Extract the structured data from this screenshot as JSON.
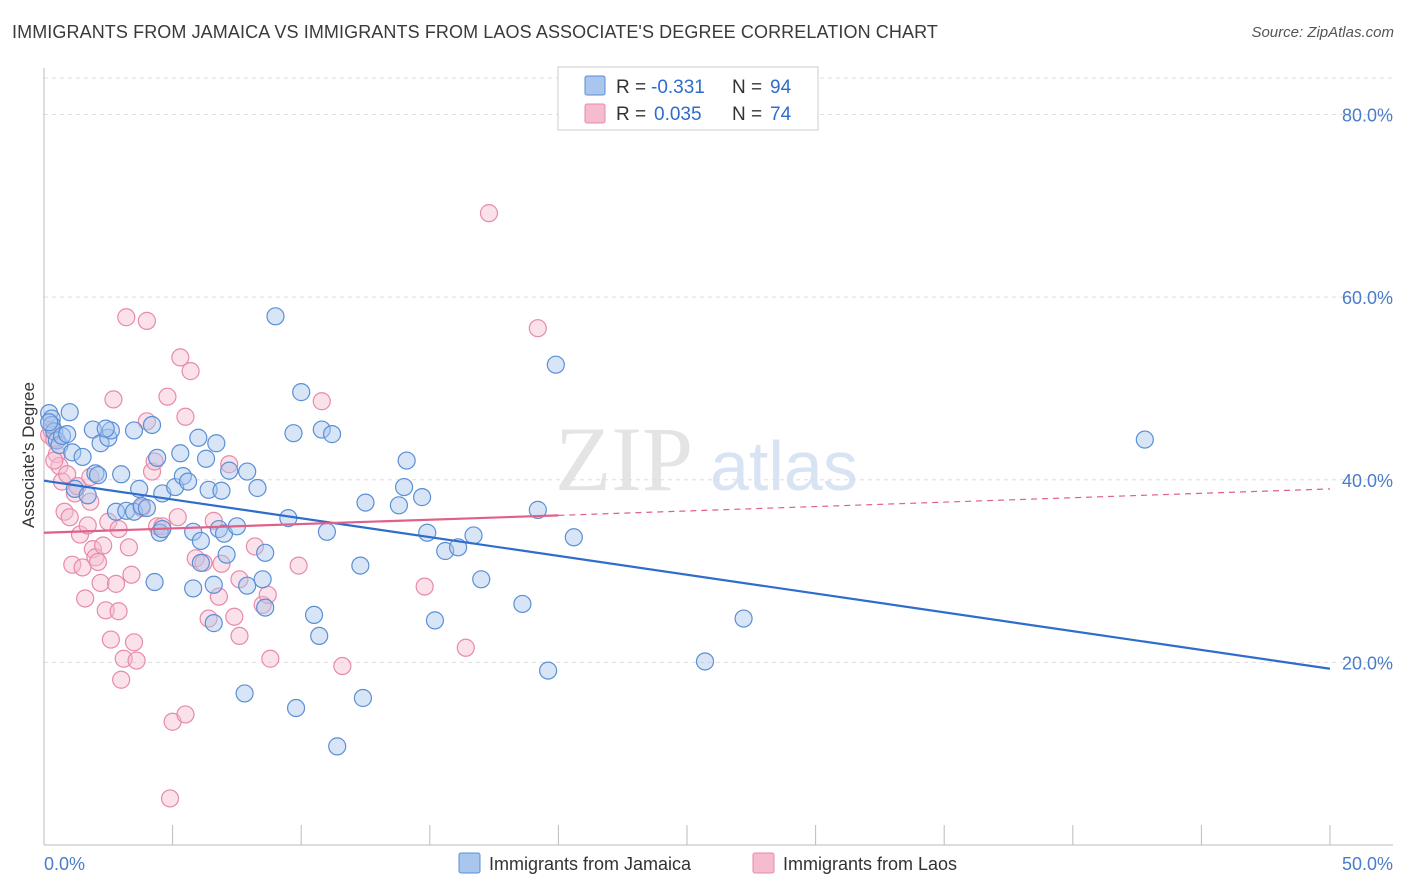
{
  "title": "IMMIGRANTS FROM JAMAICA VS IMMIGRANTS FROM LAOS ASSOCIATE'S DEGREE CORRELATION CHART",
  "source": "Source: ZipAtlas.com",
  "watermark": {
    "part1": "ZIP",
    "part2": "atlas"
  },
  "colors": {
    "jamaica_fill": "#a9c6ee",
    "jamaica_stroke": "#5b8fd6",
    "jamaica_line": "#2f6ccb",
    "laos_fill": "#f5bcd0",
    "laos_stroke": "#e88aaa",
    "laos_line": "#e0608a",
    "grid": "#dddddd",
    "tick_text": "#4a7cc9"
  },
  "legend": {
    "r_label": "R =",
    "n_label": "N =",
    "jamaica": {
      "r": "-0.331",
      "n": "94"
    },
    "laos": {
      "r": "0.035",
      "n": "74"
    }
  },
  "chart_data": {
    "type": "scatter",
    "title": "IMMIGRANTS FROM JAMAICA VS IMMIGRANTS FROM LAOS ASSOCIATE'S DEGREE CORRELATION CHART",
    "xlabel": "",
    "ylabel": "Associate's Degree",
    "xlim": [
      0,
      50
    ],
    "ylim": [
      0,
      84
    ],
    "x_tick_labels": [
      "0.0%",
      "50.0%"
    ],
    "y_ticks": [
      20,
      40,
      60,
      80
    ],
    "y_tick_labels": [
      "20.0%",
      "40.0%",
      "60.0%",
      "80.0%"
    ],
    "grid": true,
    "legend_position": "top-center",
    "series": [
      {
        "name": "Immigrants from Jamaica",
        "points": [
          [
            0.2,
            47.3
          ],
          [
            0.3,
            46.7
          ],
          [
            0.3,
            46.0
          ],
          [
            0.4,
            45.3
          ],
          [
            0.5,
            44.3
          ],
          [
            0.6,
            43.8
          ],
          [
            0.7,
            44.8
          ],
          [
            1.0,
            47.4
          ],
          [
            0.9,
            45.0
          ],
          [
            1.1,
            43.0
          ],
          [
            1.5,
            42.5
          ],
          [
            1.2,
            39.0
          ],
          [
            1.7,
            38.3
          ],
          [
            1.9,
            45.5
          ],
          [
            2.2,
            44.0
          ],
          [
            2.5,
            44.6
          ],
          [
            2.6,
            45.4
          ],
          [
            2.0,
            40.7
          ],
          [
            2.1,
            40.5
          ],
          [
            3.0,
            40.6
          ],
          [
            3.5,
            45.4
          ],
          [
            3.7,
            39.0
          ],
          [
            2.8,
            36.5
          ],
          [
            3.2,
            36.6
          ],
          [
            3.5,
            36.5
          ],
          [
            3.8,
            37.1
          ],
          [
            4.0,
            36.9
          ],
          [
            4.2,
            46.0
          ],
          [
            4.4,
            42.4
          ],
          [
            4.6,
            38.5
          ],
          [
            4.5,
            34.2
          ],
          [
            4.6,
            34.6
          ],
          [
            4.3,
            28.8
          ],
          [
            5.1,
            39.2
          ],
          [
            5.3,
            42.9
          ],
          [
            5.4,
            40.4
          ],
          [
            5.6,
            39.8
          ],
          [
            5.8,
            34.3
          ],
          [
            5.8,
            28.1
          ],
          [
            6.0,
            44.6
          ],
          [
            6.1,
            30.9
          ],
          [
            6.1,
            33.3
          ],
          [
            6.3,
            42.3
          ],
          [
            6.4,
            38.9
          ],
          [
            6.6,
            28.5
          ],
          [
            6.6,
            24.3
          ],
          [
            6.7,
            44.0
          ],
          [
            6.8,
            34.6
          ],
          [
            6.9,
            38.8
          ],
          [
            7.0,
            34.1
          ],
          [
            7.1,
            31.8
          ],
          [
            7.2,
            41.0
          ],
          [
            7.5,
            34.9
          ],
          [
            7.9,
            40.9
          ],
          [
            7.9,
            28.4
          ],
          [
            7.8,
            16.6
          ],
          [
            8.3,
            39.1
          ],
          [
            8.5,
            29.1
          ],
          [
            8.6,
            32.0
          ],
          [
            8.6,
            26.0
          ],
          [
            9.0,
            57.9
          ],
          [
            9.5,
            35.8
          ],
          [
            9.7,
            45.1
          ],
          [
            9.8,
            15.0
          ],
          [
            10.0,
            49.6
          ],
          [
            10.5,
            25.2
          ],
          [
            10.7,
            22.9
          ],
          [
            10.8,
            45.5
          ],
          [
            11.0,
            34.3
          ],
          [
            11.2,
            45.0
          ],
          [
            11.4,
            10.8
          ],
          [
            12.3,
            30.6
          ],
          [
            12.5,
            37.5
          ],
          [
            12.4,
            16.1
          ],
          [
            13.8,
            37.2
          ],
          [
            14.0,
            39.2
          ],
          [
            14.1,
            42.1
          ],
          [
            14.7,
            38.1
          ],
          [
            14.9,
            34.2
          ],
          [
            15.2,
            24.6
          ],
          [
            15.6,
            32.2
          ],
          [
            16.1,
            32.6
          ],
          [
            16.7,
            33.9
          ],
          [
            17.0,
            29.1
          ],
          [
            18.6,
            26.4
          ],
          [
            19.2,
            36.7
          ],
          [
            19.6,
            19.1
          ],
          [
            19.9,
            52.6
          ],
          [
            20.6,
            33.7
          ],
          [
            25.7,
            20.1
          ],
          [
            27.2,
            24.8
          ],
          [
            42.8,
            44.4
          ],
          [
            0.2,
            46.3
          ],
          [
            2.4,
            45.6
          ]
        ],
        "trend": {
          "x": [
            0,
            50
          ],
          "y": [
            39.9,
            19.3
          ]
        }
      },
      {
        "name": "Immigrants from Laos",
        "points": [
          [
            0.2,
            44.9
          ],
          [
            0.3,
            45.4
          ],
          [
            0.4,
            44.4
          ],
          [
            0.5,
            42.8
          ],
          [
            0.6,
            41.5
          ],
          [
            0.7,
            39.8
          ],
          [
            0.8,
            36.5
          ],
          [
            0.9,
            40.6
          ],
          [
            1.0,
            35.9
          ],
          [
            1.1,
            30.7
          ],
          [
            1.2,
            38.5
          ],
          [
            1.3,
            39.3
          ],
          [
            1.4,
            34.0
          ],
          [
            1.5,
            30.4
          ],
          [
            1.6,
            27.0
          ],
          [
            1.7,
            35.0
          ],
          [
            1.8,
            37.6
          ],
          [
            1.9,
            32.4
          ],
          [
            2.0,
            31.5
          ],
          [
            2.1,
            31.0
          ],
          [
            2.2,
            28.7
          ],
          [
            2.3,
            32.8
          ],
          [
            2.4,
            25.7
          ],
          [
            2.5,
            35.4
          ],
          [
            2.6,
            22.5
          ],
          [
            2.7,
            48.8
          ],
          [
            2.8,
            28.6
          ],
          [
            2.9,
            25.6
          ],
          [
            3.0,
            18.1
          ],
          [
            3.1,
            20.4
          ],
          [
            3.2,
            57.8
          ],
          [
            3.3,
            32.6
          ],
          [
            3.4,
            29.6
          ],
          [
            3.5,
            22.2
          ],
          [
            3.6,
            20.2
          ],
          [
            3.8,
            36.9
          ],
          [
            4.0,
            46.4
          ],
          [
            4.0,
            57.4
          ],
          [
            4.2,
            40.9
          ],
          [
            4.3,
            42.0
          ],
          [
            4.4,
            34.9
          ],
          [
            4.6,
            34.9
          ],
          [
            4.8,
            49.1
          ],
          [
            5.0,
            13.5
          ],
          [
            4.9,
            5.1
          ],
          [
            5.2,
            35.9
          ],
          [
            5.3,
            53.4
          ],
          [
            5.5,
            46.9
          ],
          [
            5.5,
            14.3
          ],
          [
            5.7,
            51.9
          ],
          [
            5.9,
            31.4
          ],
          [
            6.2,
            30.9
          ],
          [
            6.4,
            24.8
          ],
          [
            6.6,
            35.5
          ],
          [
            6.8,
            27.2
          ],
          [
            6.9,
            30.8
          ],
          [
            7.2,
            41.7
          ],
          [
            7.4,
            25.0
          ],
          [
            7.6,
            29.1
          ],
          [
            7.6,
            22.9
          ],
          [
            8.2,
            32.7
          ],
          [
            8.5,
            26.3
          ],
          [
            8.7,
            27.4
          ],
          [
            8.8,
            20.4
          ],
          [
            9.9,
            30.6
          ],
          [
            10.8,
            48.6
          ],
          [
            11.6,
            19.6
          ],
          [
            14.8,
            28.3
          ],
          [
            16.4,
            21.6
          ],
          [
            17.3,
            69.2
          ],
          [
            19.2,
            56.6
          ],
          [
            1.8,
            40.3
          ],
          [
            2.9,
            34.6
          ],
          [
            0.4,
            42.1
          ]
        ],
        "trend_solid": {
          "x": [
            0,
            20
          ],
          "y": [
            34.2,
            36.1
          ]
        },
        "trend_dashed": {
          "x": [
            20,
            50
          ],
          "y": [
            36.1,
            39.0
          ]
        }
      }
    ]
  },
  "bottom_legend": {
    "jamaica_label": "Immigrants from Jamaica",
    "laos_label": "Immigrants from Laos"
  }
}
